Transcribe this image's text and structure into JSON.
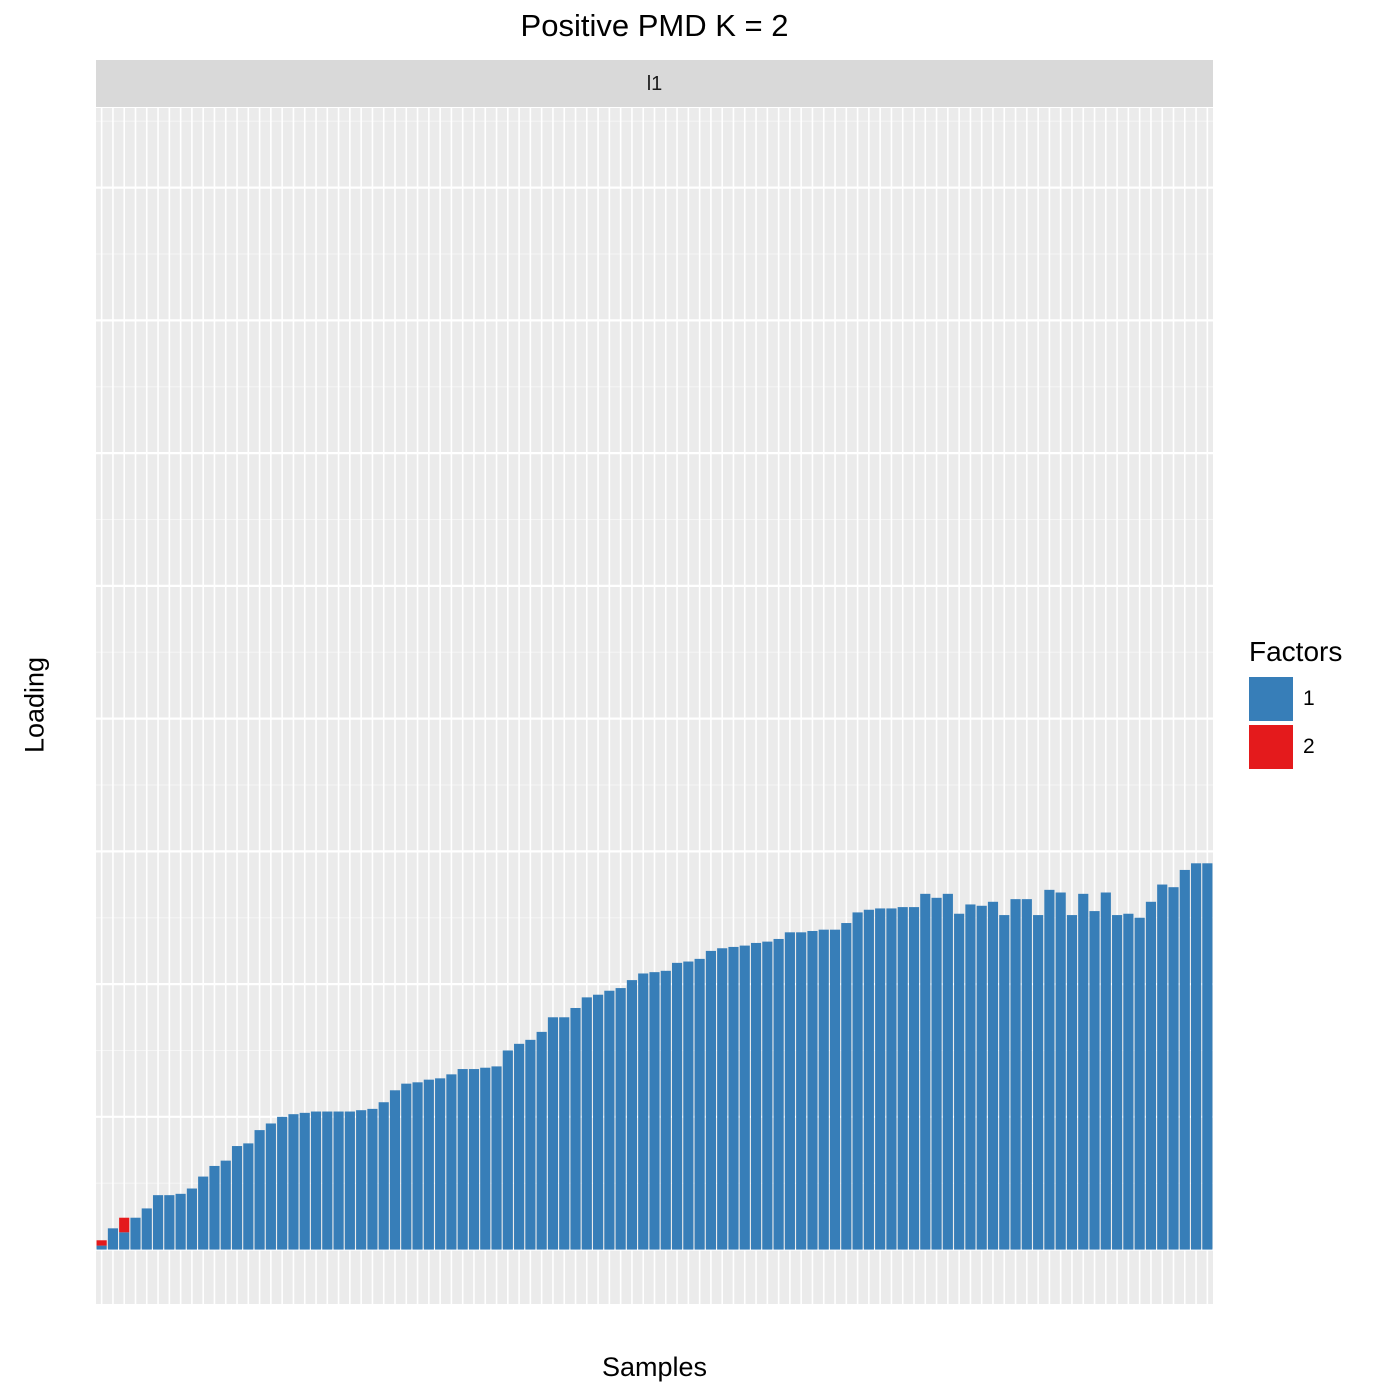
{
  "chart_data": {
    "type": "bar",
    "stacked": true,
    "title": "Positive PMD K = 2",
    "facet": "l1",
    "xlabel": "Samples",
    "ylabel": "Loading",
    "x_ticks_shown": false,
    "y_ticks_shown": false,
    "ylim": [
      -0.41,
      8.6
    ],
    "grid": true,
    "legend_title": "Factors",
    "legend_position": "right",
    "series": [
      {
        "name": "1",
        "color": "#377eb8",
        "values": [
          0.03,
          0.16,
          0.13,
          0.24,
          0.31,
          0.41,
          0.41,
          0.42,
          0.46,
          0.55,
          0.63,
          0.67,
          0.78,
          0.8,
          0.9,
          0.95,
          1.0,
          1.02,
          1.03,
          1.04,
          1.04,
          1.04,
          1.04,
          1.05,
          1.06,
          1.11,
          1.2,
          1.25,
          1.26,
          1.28,
          1.29,
          1.32,
          1.36,
          1.36,
          1.37,
          1.38,
          1.5,
          1.55,
          1.58,
          1.64,
          1.75,
          1.75,
          1.82,
          1.9,
          1.92,
          1.95,
          1.97,
          2.03,
          2.08,
          2.09,
          2.1,
          2.16,
          2.17,
          2.19,
          2.25,
          2.27,
          2.28,
          2.29,
          2.31,
          2.32,
          2.34,
          2.39,
          2.39,
          2.4,
          2.41,
          2.41,
          2.46,
          2.54,
          2.56,
          2.57,
          2.57,
          2.58,
          2.58,
          2.68,
          2.65,
          2.68,
          2.53,
          2.6,
          2.59,
          2.62,
          2.52,
          2.64,
          2.64,
          2.52,
          2.71,
          2.69,
          2.52,
          2.68,
          2.55,
          2.69,
          2.52,
          2.53,
          2.5,
          2.62,
          2.75,
          2.73,
          2.86,
          2.91,
          2.91
        ]
      },
      {
        "name": "2",
        "color": "#e41a1c",
        "values": [
          0.04,
          0.0,
          0.11,
          0.0,
          0.0,
          0.0,
          0.0,
          0.0,
          0.0,
          0.0,
          0.0,
          0.0,
          0.0,
          0.0,
          0.0,
          0.0,
          0.0,
          0.0,
          0.0,
          0.0,
          0.0,
          0.0,
          0.0,
          0.0,
          0.0,
          0.0,
          0.0,
          0.0,
          0.0,
          0.0,
          0.0,
          0.0,
          0.0,
          0.0,
          0.0,
          0.0,
          0.0,
          0.0,
          0.0,
          0.0,
          0.0,
          0.0,
          0.0,
          0.0,
          0.0,
          0.0,
          0.0,
          0.0,
          0.0,
          0.0,
          0.0,
          0.0,
          0.0,
          0.0,
          0.0,
          0.0,
          0.0,
          0.0,
          0.0,
          0.0,
          0.0,
          0.0,
          0.0,
          0.0,
          0.0,
          0.0,
          0.0,
          0.0,
          0.0,
          0.0,
          0.0,
          0.0,
          0.0,
          0.0,
          0.0,
          0.0,
          0.0,
          0.0,
          0.0,
          0.0,
          0.0,
          0.0,
          0.0,
          0.0,
          0.0,
          0.0,
          0.0,
          0.0,
          0.0,
          0.0,
          0.0,
          0.0,
          0.0,
          0.0,
          0.0,
          0.0,
          0.0,
          0.0,
          0.0
        ]
      }
    ]
  }
}
